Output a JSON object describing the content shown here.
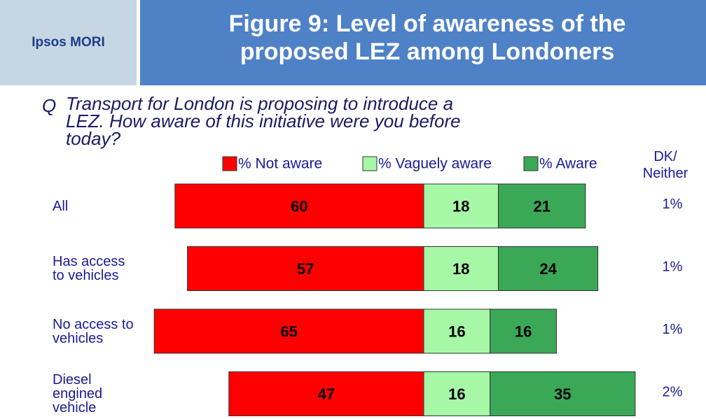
{
  "logo": "Ipsos MORI",
  "chart_data": {
    "type": "diverging_bar",
    "title": "Figure 9: Level of awareness of the proposed LEZ among Londoners",
    "question_label": "Q",
    "question": "Transport for London is proposing to introduce a LEZ. How aware of this initiative were you before today?",
    "categories": [
      "All",
      "Has access to vehicles",
      "No access to vehicles",
      "Diesel engined vehicle"
    ],
    "series": [
      {
        "name": "% Not aware",
        "color": "#ff0000",
        "values": [
          60,
          57,
          65,
          47
        ]
      },
      {
        "name": "% Vaguely aware",
        "color": "#a6f7a6",
        "values": [
          18,
          18,
          16,
          16
        ]
      },
      {
        "name": "% Aware",
        "color": "#3aa857",
        "values": [
          21,
          24,
          16,
          35
        ]
      }
    ],
    "dk_neither": {
      "name": "DK/ Neither",
      "values": [
        1,
        1,
        1,
        2
      ],
      "value_labels": [
        "1%",
        "1%",
        "1%",
        "2%"
      ]
    }
  }
}
